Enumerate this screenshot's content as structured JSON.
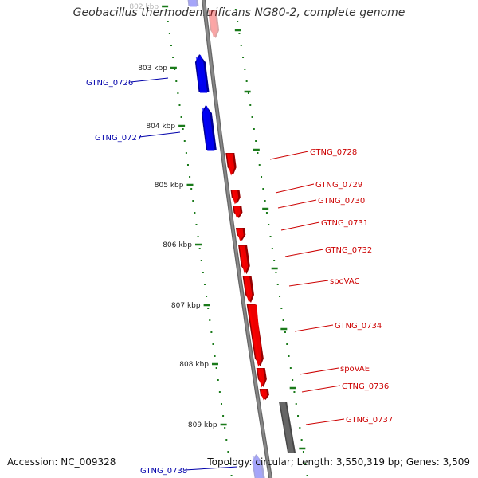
{
  "title": "Geobacillus thermodenitrificans NG80-2, complete genome",
  "accession_text": "Accession: NC_009328",
  "summary_text": "Topology: circular; Length: 3,550,319 bp; Genes: 3,509",
  "colors": {
    "backbone": "#888888",
    "forward_gene": "#ee0000",
    "reverse_gene": "#0000ee",
    "other_feature": "#666666",
    "tick_marks": "#1a7a1a",
    "forward_label": "#cc0000",
    "reverse_label": "#0000aa"
  },
  "tick_labels": [
    "802 kbp",
    "803 kbp",
    "804 kbp",
    "805 kbp",
    "806 kbp",
    "807 kbp",
    "808 kbp",
    "809 kbp"
  ],
  "reverse_genes": [
    {
      "label": "GTNG_0726"
    },
    {
      "label": "GTNG_0727"
    },
    {
      "label": "GTNG_0738"
    }
  ],
  "forward_genes": [
    {
      "label": "GTNG_0728"
    },
    {
      "label": "GTNG_0729"
    },
    {
      "label": "GTNG_0730"
    },
    {
      "label": "GTNG_0731"
    },
    {
      "label": "GTNG_0732"
    },
    {
      "label": "spoVAC"
    },
    {
      "label": "GTNG_0734"
    },
    {
      "label": "spoVAE"
    },
    {
      "label": "GTNG_0736"
    },
    {
      "label": "GTNG_0737"
    }
  ]
}
